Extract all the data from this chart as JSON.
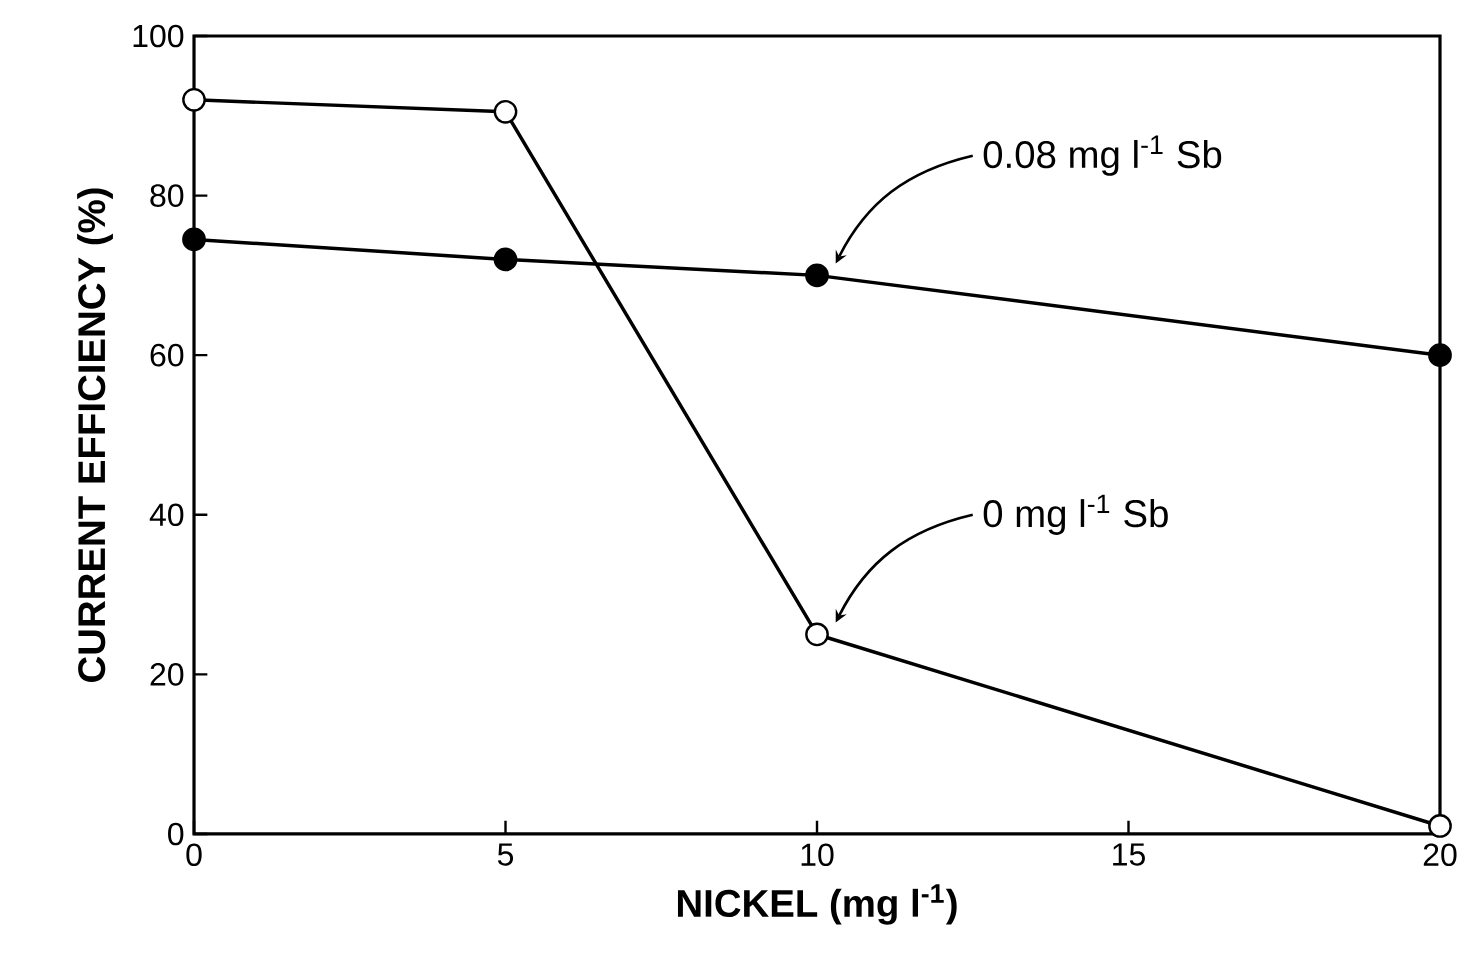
{
  "chart_data": {
    "type": "line",
    "xlabel": "NICKEL (mg l$^{-1}$)",
    "ylabel": "CURRENT EFFICIENCY (%)",
    "x": [
      0,
      5,
      10,
      20
    ],
    "series": [
      {
        "name": "0 mg l$^{-1}$ Sb",
        "color": "#000000",
        "values": [
          92,
          90.5,
          25,
          1
        ]
      },
      {
        "name": "0.08 mg l$^{-1}$ Sb",
        "color": "#000000",
        "values": [
          74.5,
          72,
          70,
          60
        ]
      }
    ],
    "xlim": [
      0,
      20
    ],
    "xticks": [
      0,
      5,
      10,
      15,
      20
    ],
    "ylim": [
      0,
      100
    ],
    "yticks": [
      0,
      20,
      40,
      60,
      80,
      100
    ],
    "marker": "circle",
    "line_style": "solid",
    "grid": false,
    "legend": false
  }
}
